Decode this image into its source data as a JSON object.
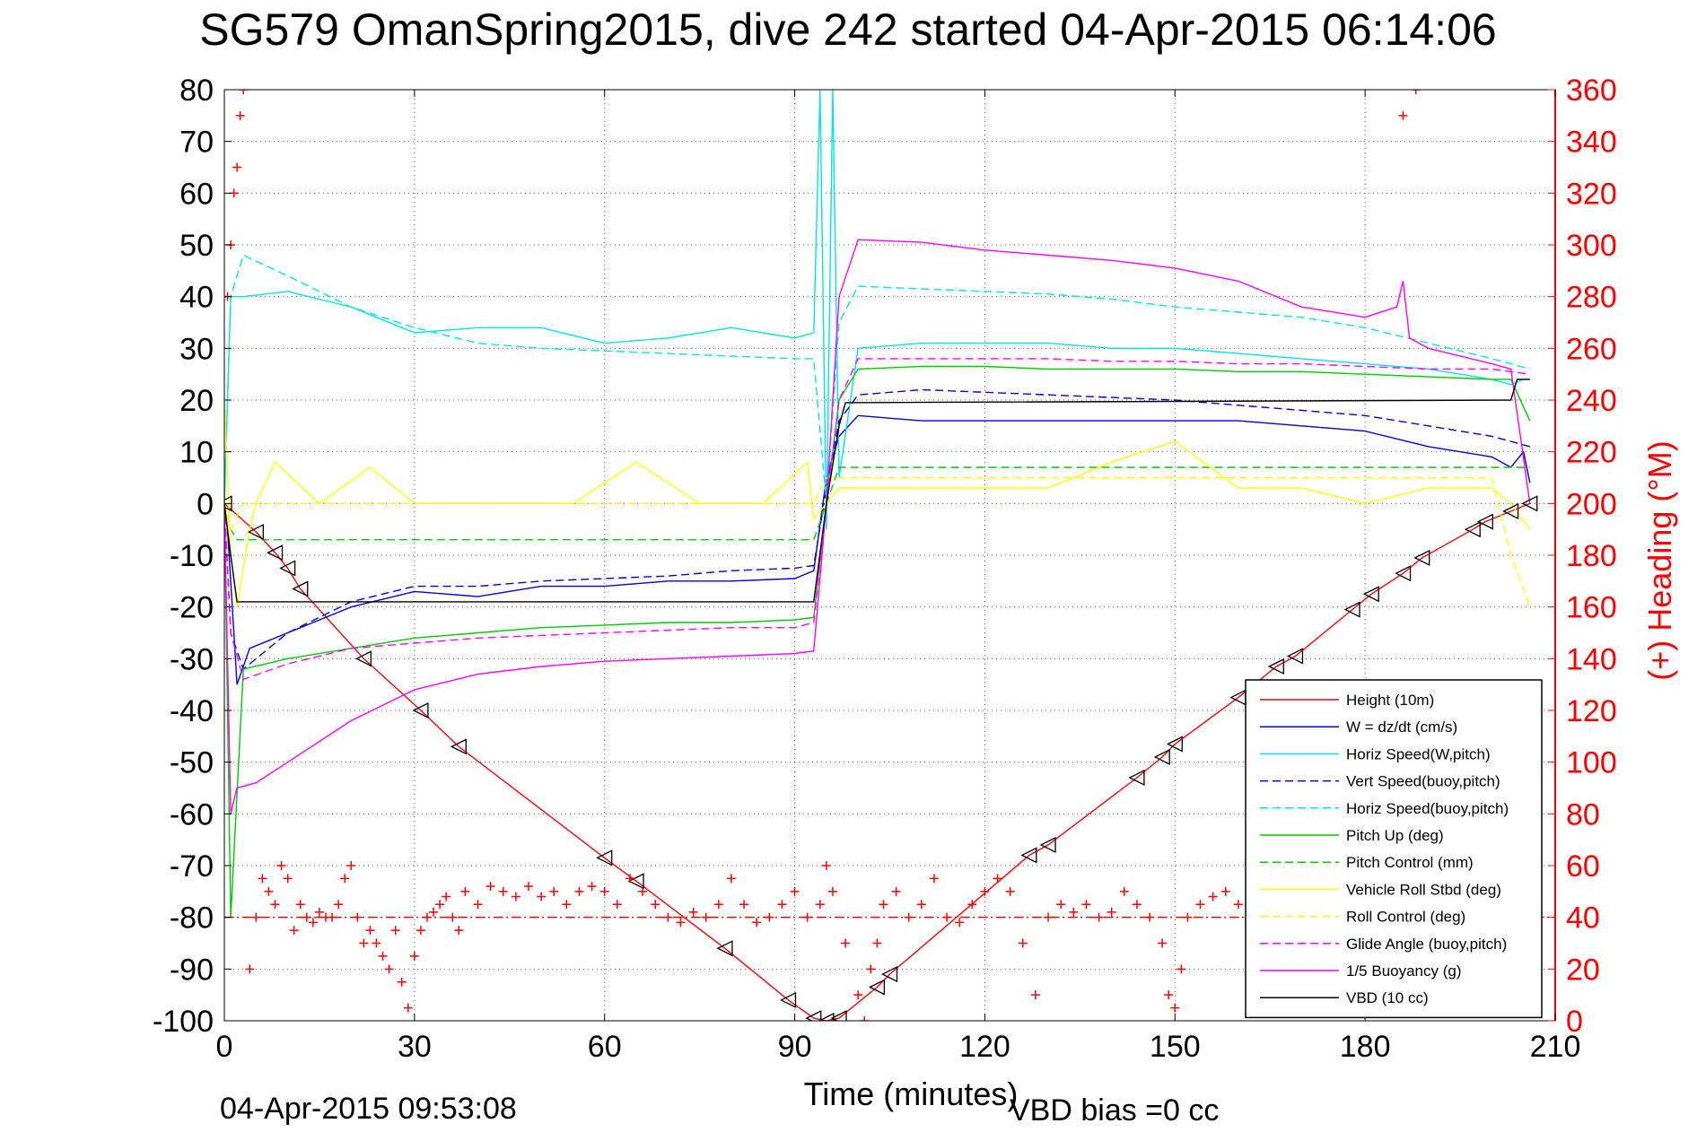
{
  "title": "SG579 OmanSpring2015, dive 242 started 04-Apr-2015 06:14:06",
  "footer": {
    "timestamp": "04-Apr-2015 09:53:08",
    "vbd_bias": "VBD bias =0 cc"
  },
  "colors": {
    "height": "#ff0000",
    "w": "#0000dd",
    "horiz": "#00e5e5",
    "pitch": "#00cc00",
    "roll": "#ffff00",
    "glide": "#ff00ff",
    "buoy": "#ff00ff",
    "vbd": "#000000",
    "heading": "#ff0000"
  },
  "chart_data": {
    "type": "line",
    "title": "SG579 OmanSpring2015, dive 242 started 04-Apr-2015 06:14:06",
    "xlabel": "Time (minutes)",
    "ylabel": "",
    "y2label": "(+) Heading (°M)",
    "xlim": [
      0,
      210
    ],
    "ylim": [
      -100,
      80
    ],
    "y2lim": [
      0,
      360
    ],
    "xticks": [
      0,
      30,
      60,
      90,
      120,
      150,
      180,
      210
    ],
    "yticks": [
      80,
      70,
      60,
      50,
      40,
      30,
      20,
      10,
      0,
      -10,
      -20,
      -30,
      -40,
      -50,
      -60,
      -70,
      -80,
      -90,
      -100
    ],
    "y2ticks": [
      360,
      340,
      320,
      300,
      280,
      260,
      240,
      220,
      200,
      180,
      160,
      140,
      120,
      100,
      80,
      60,
      40,
      20,
      0
    ],
    "grid": true,
    "legend_position": "bottom-right",
    "series": [
      {
        "name": "Height (10m)",
        "style": "solid",
        "color": "#ff0000",
        "marker": "triangle",
        "x": [
          0,
          5,
          8,
          10,
          12,
          22,
          31,
          37,
          60,
          65,
          79,
          89,
          93,
          95,
          97,
          103,
          105,
          127,
          130,
          144,
          148,
          150,
          160,
          166,
          169,
          178,
          181,
          186,
          189,
          197,
          199,
          203,
          206
        ],
        "y": [
          0,
          -5.5,
          -9.5,
          -12.5,
          -16.5,
          -30,
          -40,
          -47,
          -68.5,
          -73,
          -86,
          -96,
          -99.5,
          -100,
          -99.5,
          -93.5,
          -91,
          -68,
          -66,
          -53,
          -49,
          -46.5,
          -37.5,
          -31.5,
          -29.5,
          -20.5,
          -17.5,
          -13.5,
          -10.5,
          -5,
          -3.5,
          -1.5,
          0
        ]
      },
      {
        "name": "W = dz/dt (cm/s)",
        "style": "solid",
        "color": "#0000dd",
        "x": [
          0,
          0.5,
          1,
          2,
          4,
          10,
          20,
          30,
          40,
          50,
          60,
          70,
          80,
          90,
          93,
          95,
          97,
          100,
          110,
          120,
          130,
          140,
          150,
          160,
          170,
          180,
          190,
          200,
          203,
          205,
          206
        ],
        "y": [
          0,
          -5,
          -15,
          -35,
          -28,
          -25,
          -20,
          -17,
          -18,
          -16,
          -16,
          -15,
          -15,
          -14.5,
          -13,
          5,
          13,
          17,
          16,
          16,
          16,
          16,
          16,
          16,
          15,
          14,
          11,
          9,
          7,
          10,
          4
        ]
      },
      {
        "name": "Horiz Speed(W,pitch)",
        "style": "solid",
        "color": "#00e5e5",
        "x": [
          0,
          0.5,
          1,
          3,
          10,
          20,
          30,
          40,
          50,
          60,
          70,
          80,
          90,
          93,
          94,
          95,
          96,
          97,
          100,
          110,
          120,
          130,
          140,
          150,
          160,
          170,
          180,
          190,
          200,
          203,
          205,
          206
        ],
        "y": [
          0,
          20,
          40,
          40,
          41,
          38,
          33,
          34,
          34,
          31,
          32,
          34,
          32,
          33,
          80,
          -5,
          80,
          5,
          30,
          31,
          31,
          31,
          30,
          30,
          29,
          28,
          27,
          26,
          24,
          23,
          24,
          24
        ]
      },
      {
        "name": "Vert Speed(buoy,pitch)",
        "style": "dashed",
        "color": "#0000dd",
        "x": [
          0,
          1,
          3,
          10,
          20,
          30,
          40,
          50,
          60,
          70,
          80,
          90,
          93,
          95,
          97,
          100,
          110,
          120,
          130,
          140,
          150,
          160,
          170,
          180,
          190,
          200,
          203,
          206
        ],
        "y": [
          0,
          -25,
          -32,
          -25,
          -19,
          -16,
          -16,
          -15,
          -14.5,
          -14,
          -13,
          -12.5,
          -12,
          3,
          16,
          21,
          22,
          21.5,
          21,
          20.5,
          20,
          19,
          18,
          17,
          15,
          13,
          12,
          11
        ]
      },
      {
        "name": "Horiz Speed(buoy,pitch)",
        "style": "dashed",
        "color": "#00e5e5",
        "x": [
          0,
          1,
          3,
          10,
          20,
          30,
          40,
          50,
          60,
          70,
          80,
          90,
          93,
          95,
          97,
          100,
          110,
          120,
          130,
          140,
          150,
          160,
          170,
          180,
          190,
          200,
          203,
          206
        ],
        "y": [
          0,
          40,
          48,
          44,
          38,
          34,
          31,
          30,
          29.5,
          29,
          28.5,
          28,
          28,
          0,
          35,
          42,
          41.5,
          41,
          40.5,
          39.5,
          38,
          37,
          36,
          34,
          31,
          28,
          27,
          26
        ]
      },
      {
        "name": "Pitch Up (deg)",
        "style": "solid",
        "color": "#00cc00",
        "x": [
          0,
          1,
          3,
          10,
          20,
          30,
          40,
          50,
          60,
          70,
          80,
          90,
          93,
          95,
          97,
          100,
          110,
          120,
          130,
          140,
          150,
          160,
          170,
          180,
          190,
          200,
          203,
          206
        ],
        "y": [
          0,
          -80,
          -32,
          -30,
          -28,
          -26,
          -25,
          -24,
          -23.5,
          -23,
          -23,
          -22.5,
          -22,
          0,
          20,
          26,
          26.5,
          26.5,
          26,
          26,
          26,
          25.5,
          25.5,
          25,
          24.5,
          24,
          24,
          16
        ]
      },
      {
        "name": "Pitch Control (mm)",
        "style": "dashed",
        "color": "#00cc00",
        "x": [
          0,
          1,
          2,
          93,
          95,
          97,
          206
        ],
        "y": [
          0,
          -5,
          -7,
          -7,
          0,
          7,
          7
        ]
      },
      {
        "name": "Vehicle Roll Stbd (deg)",
        "style": "solid",
        "color": "#ffff00",
        "x": [
          0,
          1,
          2,
          4,
          5,
          8,
          15,
          23,
          30,
          37,
          45,
          55,
          65,
          75,
          85,
          92,
          93,
          95,
          97,
          100,
          110,
          120,
          130,
          140,
          150,
          160,
          170,
          180,
          190,
          200,
          203,
          206
        ],
        "y": [
          20,
          -10,
          -20,
          -5,
          0,
          8,
          0,
          7,
          0,
          0,
          0,
          0,
          8,
          0,
          0,
          8,
          -3,
          0,
          3,
          3,
          3,
          3,
          3,
          8,
          12,
          3,
          3,
          0,
          3,
          3,
          0,
          -5
        ]
      },
      {
        "name": "Roll Control (deg)",
        "style": "dashed",
        "color": "#ffff00",
        "x": [
          0,
          1,
          3,
          10,
          20,
          30,
          40,
          50,
          60,
          70,
          80,
          90,
          93,
          95,
          97,
          100,
          110,
          120,
          130,
          140,
          150,
          160,
          170,
          180,
          190,
          200,
          203,
          206
        ],
        "y": [
          0,
          -5,
          0,
          0,
          0,
          0,
          0,
          0,
          0,
          0,
          0,
          0,
          0,
          5,
          5,
          5,
          5,
          5,
          5,
          5,
          5,
          5,
          5,
          5,
          5,
          5,
          -10,
          -20
        ]
      },
      {
        "name": "Glide Angle (buoy,pitch)",
        "style": "dashed",
        "color": "#ff00ff",
        "x": [
          0,
          1,
          3,
          10,
          20,
          30,
          40,
          50,
          60,
          70,
          80,
          90,
          93,
          95,
          97,
          100,
          110,
          120,
          130,
          140,
          150,
          160,
          170,
          180,
          190,
          200,
          203,
          206
        ],
        "y": [
          0,
          -25,
          -34,
          -31,
          -28,
          -27,
          -26,
          -25.5,
          -25,
          -24.5,
          -24,
          -24,
          -23,
          0,
          20,
          28,
          28,
          28,
          28,
          27.5,
          27.5,
          27,
          27,
          26.5,
          26,
          26,
          25.5,
          25
        ]
      },
      {
        "name": "1/5 Buoyancy (g)",
        "style": "solid",
        "color": "#ff00ff",
        "x": [
          0,
          1,
          2,
          5,
          10,
          20,
          30,
          40,
          50,
          60,
          70,
          80,
          90,
          93,
          95,
          97,
          100,
          110,
          120,
          130,
          140,
          150,
          160,
          170,
          180,
          185,
          186,
          187,
          190,
          200,
          203,
          206
        ],
        "y": [
          0,
          -60,
          -55,
          -54,
          -50,
          -42,
          -36,
          -33,
          -31.5,
          -30.5,
          -30,
          -29.5,
          -29,
          -28.5,
          0,
          40,
          51,
          50.5,
          49,
          48,
          47,
          45.5,
          43,
          38,
          36,
          38,
          43,
          32,
          30,
          27,
          26,
          0
        ]
      },
      {
        "name": "VBD (10 cc)",
        "style": "solid",
        "color": "#000000",
        "x": [
          0,
          1,
          2,
          93,
          95,
          97,
          98,
          203,
          204,
          206
        ],
        "y": [
          0,
          -10,
          -19,
          -19,
          0,
          15,
          19.5,
          20,
          24,
          24
        ]
      }
    ],
    "heading": {
      "name": "Heading",
      "axis": "right",
      "marker": "+",
      "color": "#ff0000",
      "x": [
        0.5,
        1,
        1.5,
        2,
        2.5,
        3,
        4,
        5,
        6,
        7,
        8,
        9,
        10,
        11,
        12,
        13,
        14,
        15,
        16,
        17,
        18,
        19,
        20,
        21,
        22,
        23,
        24,
        25,
        26,
        27,
        28,
        29,
        30,
        31,
        32,
        33,
        34,
        35,
        36,
        37,
        38,
        40,
        42,
        44,
        46,
        48,
        50,
        52,
        54,
        56,
        58,
        60,
        62,
        64,
        66,
        68,
        70,
        72,
        74,
        76,
        78,
        80,
        82,
        84,
        86,
        88,
        90,
        92,
        94,
        95,
        96,
        98,
        100,
        101,
        102,
        103,
        104,
        106,
        108,
        110,
        112,
        114,
        116,
        118,
        120,
        122,
        124,
        126,
        128,
        130,
        132,
        134,
        136,
        138,
        140,
        142,
        144,
        146,
        148,
        149,
        150,
        151,
        152,
        154,
        156,
        158,
        160,
        162,
        164,
        166,
        168,
        170,
        172,
        174,
        176,
        178,
        180,
        182,
        184,
        186,
        188,
        190,
        192,
        194,
        196,
        198,
        200,
        202,
        204,
        206
      ],
      "y": [
        280,
        300,
        320,
        330,
        350,
        360,
        20,
        40,
        55,
        50,
        45,
        60,
        55,
        35,
        45,
        40,
        38,
        42,
        40,
        40,
        45,
        55,
        60,
        40,
        30,
        35,
        30,
        25,
        20,
        35,
        15,
        5,
        25,
        35,
        40,
        42,
        45,
        48,
        40,
        35,
        50,
        45,
        52,
        50,
        48,
        52,
        48,
        50,
        45,
        50,
        52,
        50,
        45,
        55,
        50,
        45,
        40,
        38,
        42,
        40,
        45,
        55,
        45,
        38,
        40,
        45,
        50,
        40,
        45,
        60,
        50,
        30,
        10,
        0,
        20,
        30,
        45,
        50,
        40,
        45,
        55,
        40,
        38,
        45,
        50,
        55,
        50,
        30,
        10,
        40,
        45,
        42,
        45,
        40,
        42,
        50,
        45,
        40,
        30,
        10,
        5,
        20,
        40,
        45,
        48,
        50,
        45,
        55,
        50,
        45,
        48,
        52,
        45,
        40,
        38,
        40,
        42,
        45,
        50,
        350,
        360,
        40,
        45,
        42,
        40,
        42,
        45,
        40,
        42,
        40
      ]
    },
    "heading_reference": {
      "value": 40,
      "style": "dash-dot",
      "color": "#ff0000"
    }
  }
}
